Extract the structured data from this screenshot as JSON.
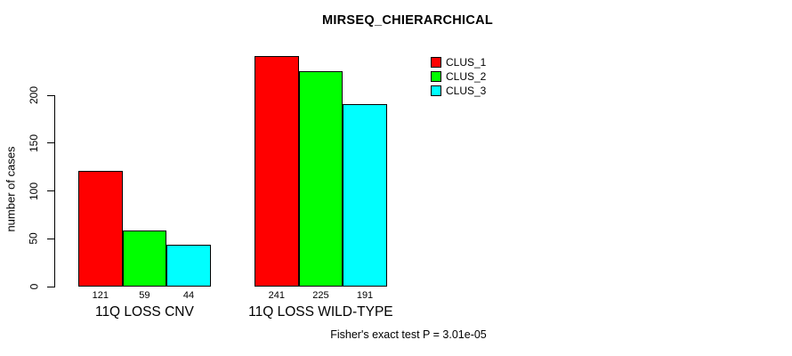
{
  "title": "MIRSEQ_CHIERARCHICAL",
  "chart_data": {
    "type": "bar",
    "title": "MIRSEQ_CHIERARCHICAL",
    "xlabel": "",
    "ylabel": "number of cases",
    "categories": [
      "11Q LOSS CNV",
      "11Q LOSS WILD-TYPE"
    ],
    "series": [
      {
        "name": "CLUS_1",
        "color": "#ff0000",
        "values": [
          121,
          241
        ]
      },
      {
        "name": "CLUS_2",
        "color": "#00ff00",
        "values": [
          59,
          225
        ]
      },
      {
        "name": "CLUS_3",
        "color": "#00ffff",
        "values": [
          44,
          191
        ]
      }
    ],
    "bar_value_labels": [
      [
        121,
        59,
        44
      ],
      [
        241,
        225,
        191
      ]
    ],
    "yticks": [
      0,
      50,
      100,
      150,
      200
    ],
    "ylim": [
      0,
      250
    ],
    "grid": false,
    "legend_position": "top-right",
    "legend_entries": [
      "CLUS_1",
      "CLUS_2",
      "CLUS_3"
    ],
    "annotation": "Fisher's exact test P = 3.01e-05"
  },
  "colors": {
    "background": "#ffffff",
    "text": "#000000",
    "axis": "#000000",
    "bar_border": "#000000"
  }
}
